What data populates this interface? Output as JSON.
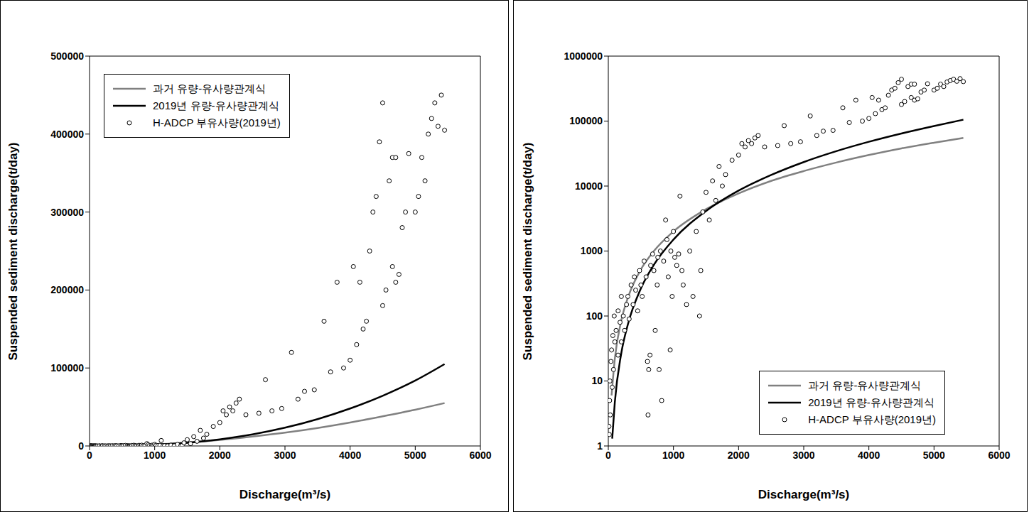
{
  "chart_data": [
    {
      "type": "scatter",
      "x_label": "Discharge(m³/s)",
      "y_label": "Suspended sediment discharge(t/day)",
      "xlim": [
        0,
        6000
      ],
      "xticks": [
        0,
        1000,
        2000,
        3000,
        4000,
        5000,
        6000
      ],
      "ylim": [
        0,
        500000
      ],
      "yticks": [
        0,
        100000,
        200000,
        300000,
        400000,
        500000
      ],
      "grid": false,
      "legend": "upper left",
      "series": [
        {
          "name": "과거 유량-유사량관계식",
          "type": "line",
          "color": "#808080",
          "x": [
            50,
            100,
            200,
            300,
            500,
            700,
            1000,
            1500,
            2000,
            2500,
            3000,
            3500,
            4000,
            4500,
            5000,
            5450
          ],
          "values": [
            6,
            22,
            86,
            190,
            520,
            1000,
            2000,
            4400,
            7700,
            12000,
            17000,
            23000,
            30000,
            38000,
            46500,
            55000
          ]
        },
        {
          "name": "2019년 유량-유사량관계식",
          "type": "line",
          "color": "#000000",
          "x": [
            60,
            100,
            200,
            300,
            500,
            700,
            1000,
            1500,
            2000,
            2500,
            3000,
            3500,
            4000,
            4500,
            5000,
            5450
          ],
          "values": [
            1.3,
            4.7,
            27,
            74,
            265,
            615,
            1500,
            4130,
            8500,
            14800,
            23400,
            34400,
            48000,
            64400,
            83900,
            105000
          ]
        },
        {
          "name": "H-ADCP 부유사량(2019년)",
          "type": "scatter",
          "marker": "circle",
          "color": "#000000",
          "x": [
            10,
            15,
            20,
            25,
            30,
            40,
            50,
            60,
            70,
            80,
            90,
            100,
            120,
            150,
            150,
            180,
            200,
            200,
            230,
            250,
            280,
            300,
            320,
            350,
            380,
            400,
            420,
            450,
            480,
            500,
            520,
            550,
            580,
            600,
            610,
            620,
            640,
            650,
            680,
            700,
            720,
            750,
            760,
            780,
            800,
            820,
            850,
            880,
            900,
            920,
            950,
            960,
            980,
            1000,
            1020,
            1050,
            1080,
            1100,
            1130,
            1150,
            1200,
            1250,
            1300,
            1350,
            1400,
            1420,
            1450,
            1500,
            1550,
            1600,
            1650,
            1700,
            1750,
            1800,
            1900,
            2000,
            2050,
            2100,
            2150,
            2200,
            2250,
            2300,
            2400,
            2600,
            2700,
            2800,
            2950,
            3100,
            3200,
            3300,
            3450,
            3600,
            3700,
            3800,
            3900,
            4000,
            4050,
            4100,
            4150,
            4200,
            4250,
            4300,
            4350,
            4400,
            4450,
            4500,
            4500,
            4550,
            4600,
            4650,
            4650,
            4700,
            4700,
            4750,
            4800,
            4850,
            4900,
            5000,
            5050,
            5100,
            5150,
            5200,
            5250,
            5300,
            5350,
            5400,
            5450
          ],
          "values": [
            2,
            1.5,
            5,
            10,
            3,
            20,
            30,
            8,
            50,
            15,
            100,
            40,
            60,
            25,
            120,
            80,
            40,
            200,
            100,
            60,
            150,
            200,
            90,
            300,
            150,
            400,
            250,
            120,
            500,
            300,
            200,
            700,
            400,
            20,
            3,
            15,
            25,
            600,
            900,
            500,
            60,
            300,
            800,
            15,
            1000,
            5,
            700,
            3000,
            1500,
            400,
            30,
            1000,
            200,
            2000,
            800,
            600,
            900,
            7000,
            500,
            300,
            150,
            1000,
            200,
            2000,
            100,
            500,
            4000,
            8000,
            3000,
            12000,
            6000,
            20000,
            10000,
            15000,
            25000,
            30000,
            45000,
            40000,
            50000,
            45000,
            55000,
            60000,
            40000,
            42000,
            85000,
            45000,
            48000,
            120000,
            60000,
            70000,
            72000,
            160000,
            95000,
            210000,
            100000,
            110000,
            230000,
            130000,
            210000,
            150000,
            160000,
            250000,
            300000,
            320000,
            390000,
            440000,
            180000,
            200000,
            340000,
            370000,
            230000,
            210000,
            370000,
            220000,
            280000,
            300000,
            375000,
            300000,
            320000,
            370000,
            340000,
            400000,
            420000,
            440000,
            410000,
            450000,
            405000
          ]
        }
      ]
    },
    {
      "type": "scatter",
      "x_label": "Discharge(m³/s)",
      "y_label": "Suspended sediment discharge(t/day)",
      "log": "y",
      "xlim": [
        0,
        6000
      ],
      "xticks": [
        0,
        1000,
        2000,
        3000,
        4000,
        5000,
        6000
      ],
      "ylim": [
        1,
        1000000
      ],
      "yticks": [
        1,
        10,
        100,
        1000,
        10000,
        100000,
        1000000
      ],
      "grid": false,
      "legend": "lower right",
      "series": [
        {
          "name": "과거 유량-유사량관계식",
          "type": "line",
          "color": "#808080",
          "x": [
            50,
            100,
            200,
            300,
            500,
            700,
            1000,
            1500,
            2000,
            2500,
            3000,
            3500,
            4000,
            4500,
            5000,
            5450
          ],
          "values": [
            6,
            22,
            86,
            190,
            520,
            1000,
            2000,
            4400,
            7700,
            12000,
            17000,
            23000,
            30000,
            38000,
            46500,
            55000
          ]
        },
        {
          "name": "2019년 유량-유사량관계식",
          "type": "line",
          "color": "#000000",
          "x": [
            60,
            100,
            200,
            300,
            500,
            700,
            1000,
            1500,
            2000,
            2500,
            3000,
            3500,
            4000,
            4500,
            5000,
            5450
          ],
          "values": [
            1.3,
            4.7,
            27,
            74,
            265,
            615,
            1500,
            4130,
            8500,
            14800,
            23400,
            34400,
            48000,
            64400,
            83900,
            105000
          ]
        },
        {
          "name": "H-ADCP 부유사량(2019년)",
          "type": "scatter",
          "marker": "circle",
          "color": "#000000",
          "x": [
            10,
            15,
            20,
            25,
            30,
            40,
            50,
            60,
            70,
            80,
            90,
            100,
            120,
            150,
            150,
            180,
            200,
            200,
            230,
            250,
            280,
            300,
            320,
            350,
            380,
            400,
            420,
            450,
            480,
            500,
            520,
            550,
            580,
            600,
            610,
            620,
            640,
            650,
            680,
            700,
            720,
            750,
            760,
            780,
            800,
            820,
            850,
            880,
            900,
            920,
            950,
            960,
            980,
            1000,
            1020,
            1050,
            1080,
            1100,
            1130,
            1150,
            1200,
            1250,
            1300,
            1350,
            1400,
            1420,
            1450,
            1500,
            1550,
            1600,
            1650,
            1700,
            1750,
            1800,
            1900,
            2000,
            2050,
            2100,
            2150,
            2200,
            2250,
            2300,
            2400,
            2600,
            2700,
            2800,
            2950,
            3100,
            3200,
            3300,
            3450,
            3600,
            3700,
            3800,
            3900,
            4000,
            4050,
            4100,
            4150,
            4200,
            4250,
            4300,
            4350,
            4400,
            4450,
            4500,
            4500,
            4550,
            4600,
            4650,
            4650,
            4700,
            4700,
            4750,
            4800,
            4850,
            4900,
            5000,
            5050,
            5100,
            5150,
            5200,
            5250,
            5300,
            5350,
            5400,
            5450
          ],
          "values": [
            2,
            1.5,
            5,
            10,
            3,
            20,
            30,
            8,
            50,
            15,
            100,
            40,
            60,
            25,
            120,
            80,
            40,
            200,
            100,
            60,
            150,
            200,
            90,
            300,
            150,
            400,
            250,
            120,
            500,
            300,
            200,
            700,
            400,
            20,
            3,
            15,
            25,
            600,
            900,
            500,
            60,
            300,
            800,
            15,
            1000,
            5,
            700,
            3000,
            1500,
            400,
            30,
            1000,
            200,
            2000,
            800,
            600,
            900,
            7000,
            500,
            300,
            150,
            1000,
            200,
            2000,
            100,
            500,
            4000,
            8000,
            3000,
            12000,
            6000,
            20000,
            10000,
            15000,
            25000,
            30000,
            45000,
            40000,
            50000,
            45000,
            55000,
            60000,
            40000,
            42000,
            85000,
            45000,
            48000,
            120000,
            60000,
            70000,
            72000,
            160000,
            95000,
            210000,
            100000,
            110000,
            230000,
            130000,
            210000,
            150000,
            160000,
            250000,
            300000,
            320000,
            390000,
            440000,
            180000,
            200000,
            340000,
            370000,
            230000,
            210000,
            370000,
            220000,
            280000,
            300000,
            375000,
            300000,
            320000,
            370000,
            340000,
            400000,
            420000,
            440000,
            410000,
            450000,
            405000
          ]
        }
      ]
    }
  ]
}
